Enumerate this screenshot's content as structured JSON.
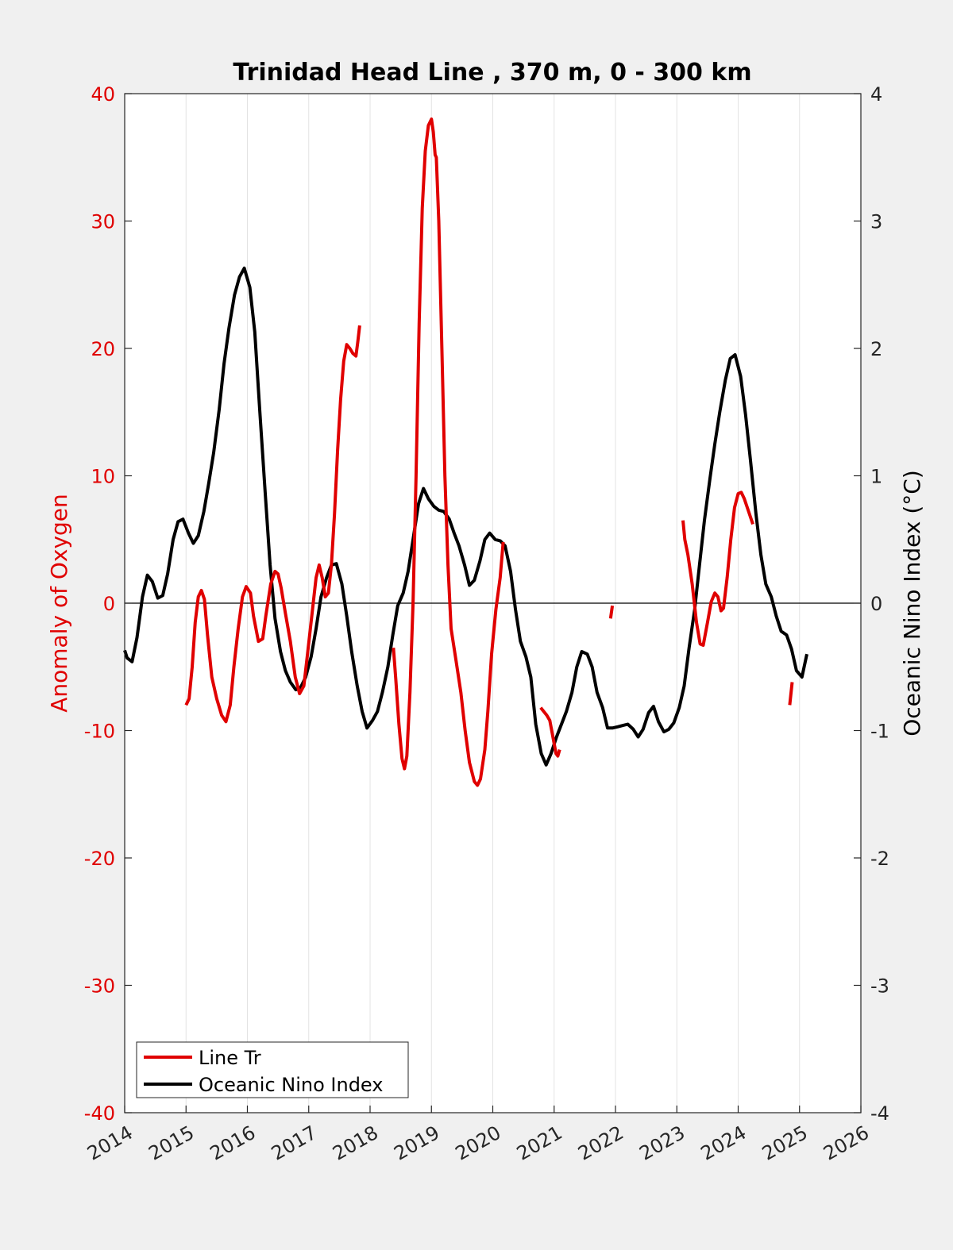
{
  "chart_data": {
    "type": "line",
    "title": "Trinidad Head Line , 370 m, 0 - 300 km",
    "xlabel": "",
    "ylabel_left": "Anomaly of Oxygen",
    "ylabel_right": "Oceanic Nino Index (°C)",
    "xlim": [
      2014,
      2026
    ],
    "ylim_left": [
      -40,
      40
    ],
    "ylim_right": [
      -4,
      4
    ],
    "x_ticks": [
      "2014",
      "2015",
      "2016",
      "2017",
      "2018",
      "2019",
      "2020",
      "2021",
      "2022",
      "2023",
      "2024",
      "2025",
      "2026"
    ],
    "y_ticks_left": [
      "40",
      "30",
      "20",
      "10",
      "0",
      "-10",
      "-20",
      "-30",
      "-40"
    ],
    "y_ticks_right": [
      "4",
      "3",
      "2",
      "1",
      "0",
      "-1",
      "-2",
      "-3",
      "-4"
    ],
    "grid": "vertical",
    "zero_line": true,
    "legend_position": "bottom-left",
    "colors": {
      "left_axis": "#e00000",
      "oxygen": "#e00000",
      "oni": "#000000"
    },
    "series": [
      {
        "name": "Line Tr",
        "axis": "left",
        "segments": [
          [
            [
              2015.0,
              -8.0
            ],
            [
              2015.05,
              -7.5
            ],
            [
              2015.1,
              -5
            ],
            [
              2015.15,
              -1.5
            ],
            [
              2015.2,
              0.5
            ],
            [
              2015.25,
              1.0
            ],
            [
              2015.3,
              0.3
            ],
            [
              2015.35,
              -2.5
            ],
            [
              2015.42,
              -5.8
            ],
            [
              2015.5,
              -7.5
            ],
            [
              2015.58,
              -8.8
            ],
            [
              2015.65,
              -9.3
            ],
            [
              2015.72,
              -8
            ],
            [
              2015.78,
              -5
            ],
            [
              2015.85,
              -2
            ],
            [
              2015.92,
              0.5
            ],
            [
              2015.98,
              1.3
            ],
            [
              2016.05,
              0.8
            ],
            [
              2016.1,
              -1
            ],
            [
              2016.18,
              -3
            ],
            [
              2016.25,
              -2.8
            ],
            [
              2016.3,
              -1
            ],
            [
              2016.38,
              1.5
            ],
            [
              2016.45,
              2.5
            ],
            [
              2016.5,
              2.3
            ],
            [
              2016.55,
              1.2
            ],
            [
              2016.62,
              -0.8
            ],
            [
              2016.7,
              -3
            ],
            [
              2016.78,
              -5.8
            ],
            [
              2016.85,
              -7.1
            ],
            [
              2016.92,
              -6.5
            ],
            [
              2016.98,
              -4
            ],
            [
              2017.05,
              -1
            ],
            [
              2017.12,
              2
            ],
            [
              2017.17,
              3
            ],
            [
              2017.22,
              2
            ],
            [
              2017.27,
              0.5
            ],
            [
              2017.32,
              0.8
            ],
            [
              2017.37,
              3
            ],
            [
              2017.42,
              7
            ],
            [
              2017.47,
              12
            ],
            [
              2017.52,
              16
            ],
            [
              2017.57,
              19
            ],
            [
              2017.62,
              20.3
            ],
            [
              2017.67,
              20
            ],
            [
              2017.72,
              19.6
            ],
            [
              2017.77,
              19.4
            ],
            [
              2017.8,
              20.5
            ],
            [
              2017.83,
              21.8
            ]
          ],
          [
            [
              2018.38,
              -3.5
            ],
            [
              2018.42,
              -6
            ],
            [
              2018.47,
              -9.5
            ],
            [
              2018.52,
              -12.2
            ],
            [
              2018.56,
              -13
            ],
            [
              2018.6,
              -12
            ],
            [
              2018.65,
              -7
            ],
            [
              2018.7,
              0
            ],
            [
              2018.75,
              10
            ],
            [
              2018.8,
              22
            ],
            [
              2018.85,
              31
            ],
            [
              2018.9,
              35.5
            ],
            [
              2018.95,
              37.5
            ],
            [
              2019.0,
              38.0
            ],
            [
              2019.03,
              37
            ],
            [
              2019.06,
              35.2
            ],
            [
              2019.08,
              35
            ],
            [
              2019.12,
              30
            ],
            [
              2019.17,
              20
            ],
            [
              2019.22,
              10
            ],
            [
              2019.27,
              3
            ],
            [
              2019.32,
              -2
            ],
            [
              2019.4,
              -4.5
            ],
            [
              2019.48,
              -7
            ],
            [
              2019.55,
              -10
            ],
            [
              2019.62,
              -12.5
            ],
            [
              2019.7,
              -14
            ],
            [
              2019.75,
              -14.3
            ],
            [
              2019.8,
              -13.8
            ],
            [
              2019.87,
              -11.5
            ],
            [
              2019.92,
              -8.5
            ],
            [
              2019.98,
              -4
            ],
            [
              2020.05,
              -0.5
            ],
            [
              2020.12,
              2
            ],
            [
              2020.17,
              4.8
            ]
          ],
          [
            [
              2020.78,
              -8.2
            ],
            [
              2020.83,
              -8.5
            ],
            [
              2020.88,
              -8.8
            ],
            [
              2020.93,
              -9.2
            ],
            [
              2020.98,
              -10.5
            ],
            [
              2021.03,
              -11.8
            ],
            [
              2021.06,
              -12
            ],
            [
              2021.09,
              -11.5
            ]
          ],
          [
            [
              2021.92,
              -1.2
            ],
            [
              2021.95,
              -0.2
            ]
          ],
          [
            [
              2023.1,
              6.5
            ],
            [
              2023.13,
              5
            ],
            [
              2023.18,
              3.8
            ],
            [
              2023.25,
              1.5
            ],
            [
              2023.32,
              -1.5
            ],
            [
              2023.38,
              -3.2
            ],
            [
              2023.43,
              -3.3
            ],
            [
              2023.5,
              -1.5
            ],
            [
              2023.56,
              0.1
            ],
            [
              2023.62,
              0.8
            ],
            [
              2023.67,
              0.5
            ],
            [
              2023.72,
              -0.6
            ],
            [
              2023.76,
              -0.4
            ],
            [
              2023.82,
              2
            ],
            [
              2023.88,
              5
            ],
            [
              2023.94,
              7.5
            ],
            [
              2024.0,
              8.6
            ],
            [
              2024.05,
              8.7
            ],
            [
              2024.1,
              8.2
            ],
            [
              2024.17,
              7.2
            ],
            [
              2024.24,
              6.2
            ]
          ],
          [
            [
              2024.84,
              -8.0
            ],
            [
              2024.88,
              -6.2
            ]
          ]
        ]
      },
      {
        "name": "Oceanic Nino Index",
        "axis": "right",
        "segments": [
          [
            [
              2014.0,
              -0.37
            ],
            [
              2014.04,
              -0.43
            ],
            [
              2014.12,
              -0.46
            ],
            [
              2014.2,
              -0.27
            ],
            [
              2014.29,
              0.05
            ],
            [
              2014.37,
              0.22
            ],
            [
              2014.45,
              0.17
            ],
            [
              2014.54,
              0.04
            ],
            [
              2014.62,
              0.06
            ],
            [
              2014.7,
              0.23
            ],
            [
              2014.79,
              0.5
            ],
            [
              2014.87,
              0.64
            ],
            [
              2014.95,
              0.66
            ],
            [
              2015.04,
              0.55
            ],
            [
              2015.12,
              0.47
            ],
            [
              2015.2,
              0.53
            ],
            [
              2015.29,
              0.72
            ],
            [
              2015.37,
              0.94
            ],
            [
              2015.45,
              1.18
            ],
            [
              2015.54,
              1.52
            ],
            [
              2015.62,
              1.88
            ],
            [
              2015.7,
              2.16
            ],
            [
              2015.79,
              2.42
            ],
            [
              2015.87,
              2.56
            ],
            [
              2015.95,
              2.63
            ],
            [
              2016.04,
              2.48
            ],
            [
              2016.12,
              2.13
            ],
            [
              2016.2,
              1.52
            ],
            [
              2016.29,
              0.87
            ],
            [
              2016.37,
              0.3
            ],
            [
              2016.45,
              -0.12
            ],
            [
              2016.54,
              -0.38
            ],
            [
              2016.62,
              -0.53
            ],
            [
              2016.7,
              -0.62
            ],
            [
              2016.79,
              -0.68
            ],
            [
              2016.87,
              -0.66
            ],
            [
              2016.95,
              -0.58
            ],
            [
              2017.04,
              -0.42
            ],
            [
              2017.12,
              -0.2
            ],
            [
              2017.2,
              0.05
            ],
            [
              2017.29,
              0.2
            ],
            [
              2017.37,
              0.3
            ],
            [
              2017.45,
              0.31
            ],
            [
              2017.54,
              0.15
            ],
            [
              2017.62,
              -0.1
            ],
            [
              2017.7,
              -0.38
            ],
            [
              2017.79,
              -0.65
            ],
            [
              2017.87,
              -0.85
            ],
            [
              2017.95,
              -0.98
            ],
            [
              2018.04,
              -0.92
            ],
            [
              2018.12,
              -0.85
            ],
            [
              2018.2,
              -0.7
            ],
            [
              2018.29,
              -0.5
            ],
            [
              2018.37,
              -0.25
            ],
            [
              2018.45,
              -0.02
            ],
            [
              2018.54,
              0.08
            ],
            [
              2018.62,
              0.25
            ],
            [
              2018.7,
              0.5
            ],
            [
              2018.79,
              0.78
            ],
            [
              2018.87,
              0.9
            ],
            [
              2018.95,
              0.82
            ],
            [
              2019.04,
              0.76
            ],
            [
              2019.12,
              0.73
            ],
            [
              2019.2,
              0.72
            ],
            [
              2019.29,
              0.66
            ],
            [
              2019.37,
              0.55
            ],
            [
              2019.45,
              0.45
            ],
            [
              2019.54,
              0.3
            ],
            [
              2019.62,
              0.14
            ],
            [
              2019.7,
              0.18
            ],
            [
              2019.79,
              0.33
            ],
            [
              2019.87,
              0.5
            ],
            [
              2019.95,
              0.55
            ],
            [
              2020.04,
              0.5
            ],
            [
              2020.12,
              0.49
            ],
            [
              2020.2,
              0.45
            ],
            [
              2020.29,
              0.25
            ],
            [
              2020.37,
              -0.05
            ],
            [
              2020.45,
              -0.3
            ],
            [
              2020.54,
              -0.42
            ],
            [
              2020.62,
              -0.58
            ],
            [
              2020.7,
              -0.95
            ],
            [
              2020.79,
              -1.18
            ],
            [
              2020.87,
              -1.27
            ],
            [
              2020.95,
              -1.18
            ],
            [
              2021.04,
              -1.05
            ],
            [
              2021.12,
              -0.95
            ],
            [
              2021.2,
              -0.85
            ],
            [
              2021.29,
              -0.7
            ],
            [
              2021.37,
              -0.5
            ],
            [
              2021.45,
              -0.38
            ],
            [
              2021.54,
              -0.4
            ],
            [
              2021.62,
              -0.5
            ],
            [
              2021.7,
              -0.7
            ],
            [
              2021.79,
              -0.82
            ],
            [
              2021.87,
              -0.98
            ],
            [
              2021.95,
              -0.98
            ],
            [
              2022.04,
              -0.97
            ],
            [
              2022.12,
              -0.96
            ],
            [
              2022.2,
              -0.95
            ],
            [
              2022.29,
              -0.99
            ],
            [
              2022.37,
              -1.05
            ],
            [
              2022.45,
              -0.99
            ],
            [
              2022.54,
              -0.86
            ],
            [
              2022.62,
              -0.81
            ],
            [
              2022.7,
              -0.93
            ],
            [
              2022.79,
              -1.01
            ],
            [
              2022.87,
              -0.99
            ],
            [
              2022.95,
              -0.94
            ],
            [
              2023.04,
              -0.82
            ],
            [
              2023.12,
              -0.65
            ],
            [
              2023.2,
              -0.35
            ],
            [
              2023.29,
              -0.05
            ],
            [
              2023.37,
              0.3
            ],
            [
              2023.45,
              0.65
            ],
            [
              2023.54,
              0.98
            ],
            [
              2023.62,
              1.25
            ],
            [
              2023.7,
              1.5
            ],
            [
              2023.79,
              1.75
            ],
            [
              2023.87,
              1.92
            ],
            [
              2023.95,
              1.95
            ],
            [
              2024.04,
              1.78
            ],
            [
              2024.12,
              1.48
            ],
            [
              2024.2,
              1.12
            ],
            [
              2024.29,
              0.7
            ],
            [
              2024.37,
              0.38
            ],
            [
              2024.45,
              0.15
            ],
            [
              2024.54,
              0.05
            ],
            [
              2024.62,
              -0.1
            ],
            [
              2024.7,
              -0.22
            ],
            [
              2024.79,
              -0.25
            ],
            [
              2024.87,
              -0.36
            ],
            [
              2024.95,
              -0.53
            ],
            [
              2025.04,
              -0.58
            ],
            [
              2025.12,
              -0.4
            ]
          ]
        ]
      }
    ]
  }
}
